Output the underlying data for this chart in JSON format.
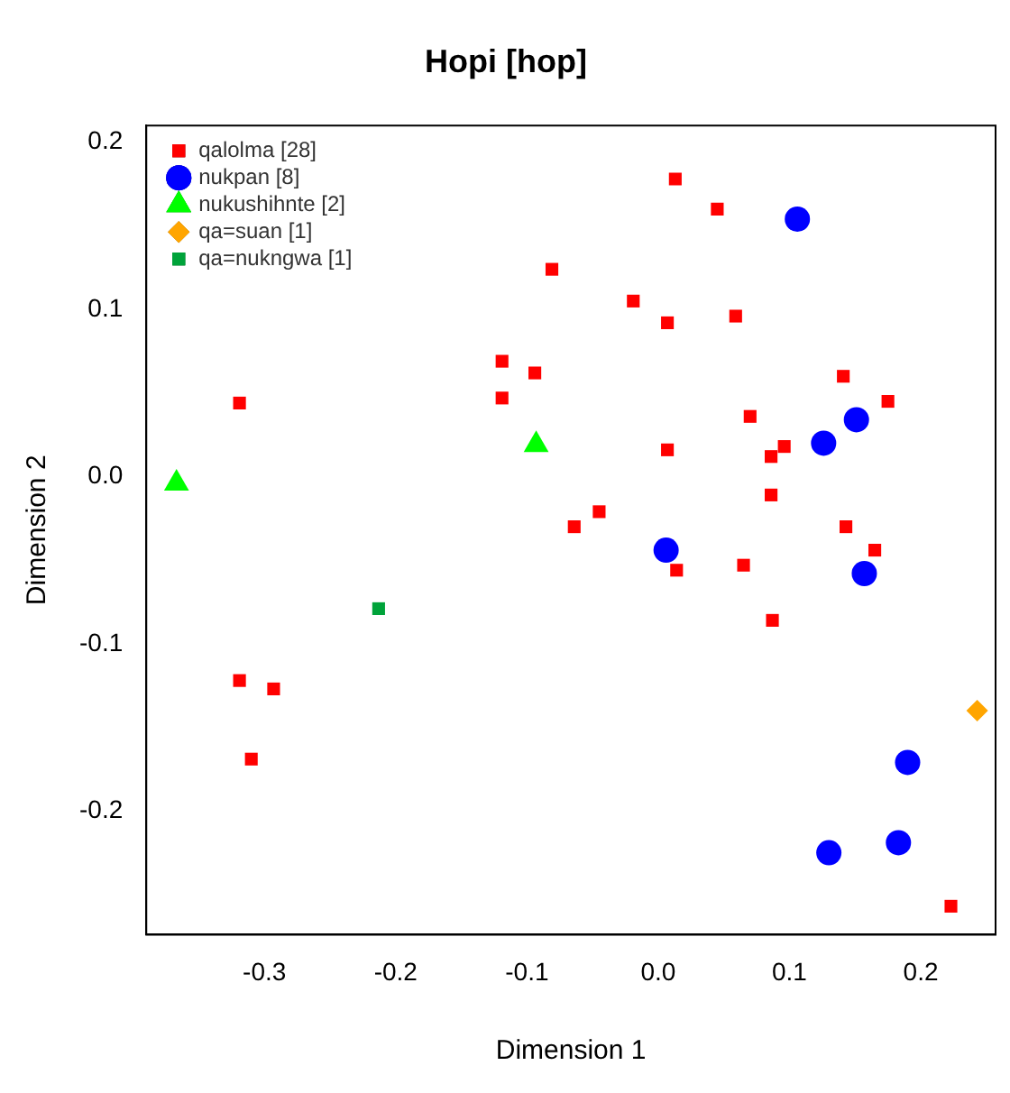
{
  "chart_data": {
    "type": "scatter",
    "title": "Hopi [hop]",
    "xlabel": "Dimension 1",
    "ylabel": "Dimension 2",
    "xlim": [
      -0.39,
      0.257
    ],
    "ylim": [
      -0.274,
      0.21
    ],
    "xticks": [
      -0.3,
      -0.2,
      -0.1,
      {
        "value": 0,
        "label": "0.0"
      },
      0.1,
      0.2
    ],
    "yticks": [
      -0.2,
      -0.1,
      {
        "value": 0,
        "label": "0.0"
      },
      0.1,
      0.2
    ],
    "grid": false,
    "legend": "top left",
    "series": [
      {
        "name": "qalolma [28]",
        "color": "#ff0000",
        "marker": "square",
        "x": [
          0.013,
          0.045,
          -0.081,
          -0.019,
          0.007,
          0.059,
          -0.119,
          -0.094,
          -0.119,
          -0.319,
          0.141,
          0.175,
          0.07,
          0.007,
          0.096,
          0.086,
          0.086,
          -0.045,
          -0.064,
          0.143,
          0.165,
          0.014,
          0.065,
          0.087,
          -0.319,
          -0.293,
          -0.31,
          0.223
        ],
        "values": [
          0.178,
          0.16,
          0.124,
          0.105,
          0.092,
          0.096,
          0.069,
          0.062,
          0.047,
          0.044,
          0.06,
          0.045,
          0.036,
          0.016,
          0.018,
          0.012,
          -0.011,
          -0.021,
          -0.03,
          -0.03,
          -0.044,
          -0.056,
          -0.053,
          -0.086,
          -0.122,
          -0.127,
          -0.169,
          -0.257
        ]
      },
      {
        "name": "nukpan [8]",
        "color": "#0000ff",
        "marker": "circle",
        "x": [
          0.106,
          0.126,
          0.151,
          0.006,
          0.157,
          0.19,
          0.183,
          0.13
        ],
        "values": [
          0.154,
          0.02,
          0.034,
          -0.044,
          -0.058,
          -0.171,
          -0.219,
          -0.225
        ]
      },
      {
        "name": "nukushihnte [2]",
        "color": "#00ff00",
        "marker": "triangle",
        "x": [
          -0.367,
          -0.093
        ],
        "values": [
          -0.004,
          0.019
        ]
      },
      {
        "name": "qa=suan [1]",
        "color": "#ffa500",
        "marker": "diamond",
        "x": [
          0.243
        ],
        "values": [
          -0.14
        ]
      },
      {
        "name": "qa=nukngwa [1]",
        "color": "#00a33a",
        "marker": "square",
        "x": [
          -0.213
        ],
        "values": [
          -0.079
        ]
      }
    ]
  }
}
